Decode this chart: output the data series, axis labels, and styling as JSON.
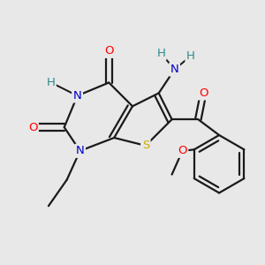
{
  "bg_color": "#e8e8e8",
  "bond_color": "#1a1a1a",
  "bond_width": 1.6,
  "atom_colors": {
    "O": "#ff0000",
    "N": "#0000cc",
    "S": "#ccaa00",
    "H": "#2e8b8b",
    "C": "#1a1a1a"
  },
  "font_size": 9.5,
  "fig_size": [
    3.0,
    3.0
  ],
  "dpi": 100
}
